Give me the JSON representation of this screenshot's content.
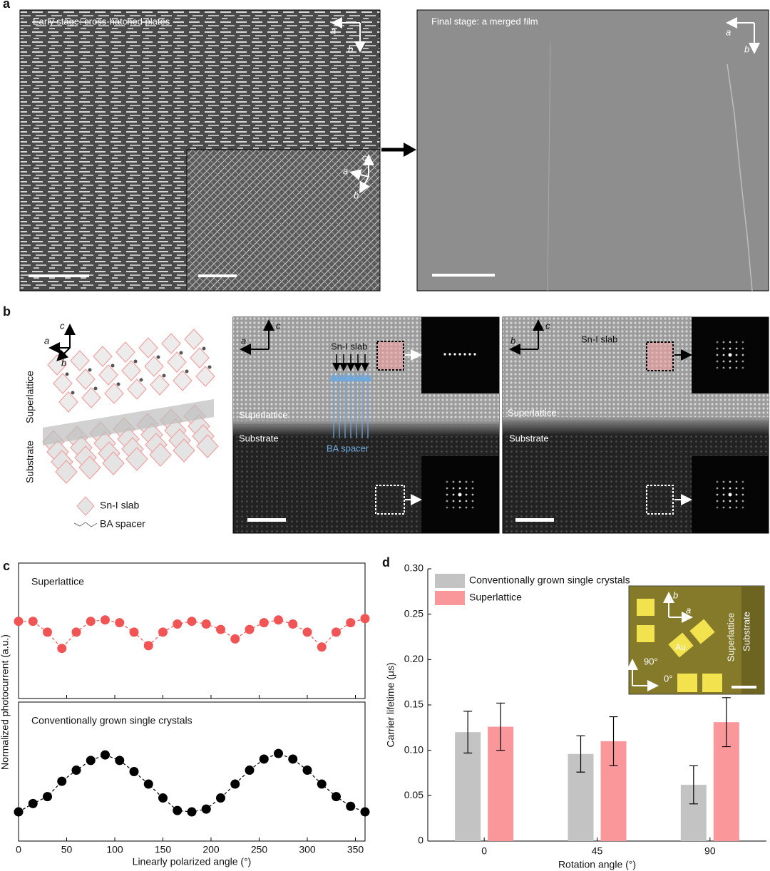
{
  "panel_labels": [
    "a",
    "b",
    "c",
    "d"
  ],
  "panel_a": {
    "left_title": "Early stage: cross-hatched plates",
    "right_title": "Final stage: a merged film",
    "axes": [
      "a",
      "b",
      "c"
    ]
  },
  "panel_b": {
    "structure": {
      "axes": [
        "a",
        "b",
        "c"
      ],
      "layers": [
        "Superlattice",
        "Substrate"
      ],
      "legend": [
        "Sn-I slab",
        "BA spacer"
      ]
    },
    "image_left": {
      "labels": [
        "Sn-I slab",
        "Superlattice",
        "Substrate",
        "BA spacer"
      ],
      "axes": [
        "c",
        "a"
      ]
    },
    "image_right": {
      "labels": [
        "Sn-I slab",
        "Superlattice",
        "Substrate"
      ],
      "axes": [
        "c",
        "b"
      ]
    }
  },
  "chart_data": [
    {
      "type": "line",
      "title": "Superlattice",
      "ylabel": "Normalized photocurrent (a.u.)",
      "color": "#f05454",
      "x": [
        0,
        15,
        30,
        45,
        60,
        75,
        90,
        105,
        120,
        135,
        150,
        165,
        180,
        195,
        210,
        225,
        240,
        255,
        270,
        285,
        300,
        315,
        330,
        345,
        360
      ],
      "values": [
        0.57,
        0.57,
        0.49,
        0.37,
        0.49,
        0.57,
        0.58,
        0.56,
        0.49,
        0.39,
        0.49,
        0.55,
        0.57,
        0.55,
        0.51,
        0.44,
        0.51,
        0.56,
        0.58,
        0.55,
        0.49,
        0.38,
        0.49,
        0.56,
        0.59
      ],
      "xlim": [
        0,
        360
      ],
      "xticks": [
        0,
        50,
        100,
        150,
        200,
        250,
        300,
        350
      ],
      "ylim": [
        0,
        1
      ]
    },
    {
      "type": "line",
      "title": "Conventionally grown single crystals",
      "xlabel": "Linearly polarized angle (°)",
      "color": "#000000",
      "x": [
        0,
        15,
        30,
        45,
        60,
        75,
        90,
        105,
        120,
        135,
        150,
        165,
        180,
        195,
        210,
        225,
        240,
        255,
        270,
        285,
        300,
        315,
        330,
        345,
        360
      ],
      "values": [
        0.21,
        0.27,
        0.32,
        0.43,
        0.51,
        0.58,
        0.62,
        0.58,
        0.5,
        0.41,
        0.31,
        0.22,
        0.21,
        0.23,
        0.31,
        0.41,
        0.51,
        0.59,
        0.63,
        0.59,
        0.51,
        0.41,
        0.32,
        0.25,
        0.21
      ],
      "xlim": [
        0,
        360
      ],
      "xticks": [
        0,
        50,
        100,
        150,
        200,
        250,
        300,
        350
      ],
      "ylim": [
        0,
        1
      ]
    },
    {
      "type": "bar",
      "xlabel": "Rotation angle (°)",
      "ylabel": "Carrier lifetime (μs)",
      "categories": [
        "0",
        "45",
        "90"
      ],
      "series": [
        {
          "name": "Conventionally grown single crystals",
          "color": "#c3c3c3",
          "values": [
            0.12,
            0.096,
            0.062
          ],
          "errors": [
            0.023,
            0.02,
            0.021
          ]
        },
        {
          "name": "Superlattice",
          "color": "#f9979b",
          "values": [
            0.126,
            0.11,
            0.131
          ],
          "errors": [
            0.026,
            0.027,
            0.027
          ]
        }
      ],
      "ylim": [
        0,
        0.3
      ],
      "yticks": [
        0,
        0.05,
        {
          "value": 0.1,
          "label": "0.10"
        },
        0.15,
        {
          "value": 0.2,
          "label": "0.20"
        },
        0.25,
        {
          "value": 0.3,
          "label": "0.30"
        }
      ],
      "inset": {
        "labels": [
          "b",
          "a",
          "Au",
          "Superlattice",
          "Substrate",
          "90°",
          "0°"
        ]
      }
    }
  ]
}
